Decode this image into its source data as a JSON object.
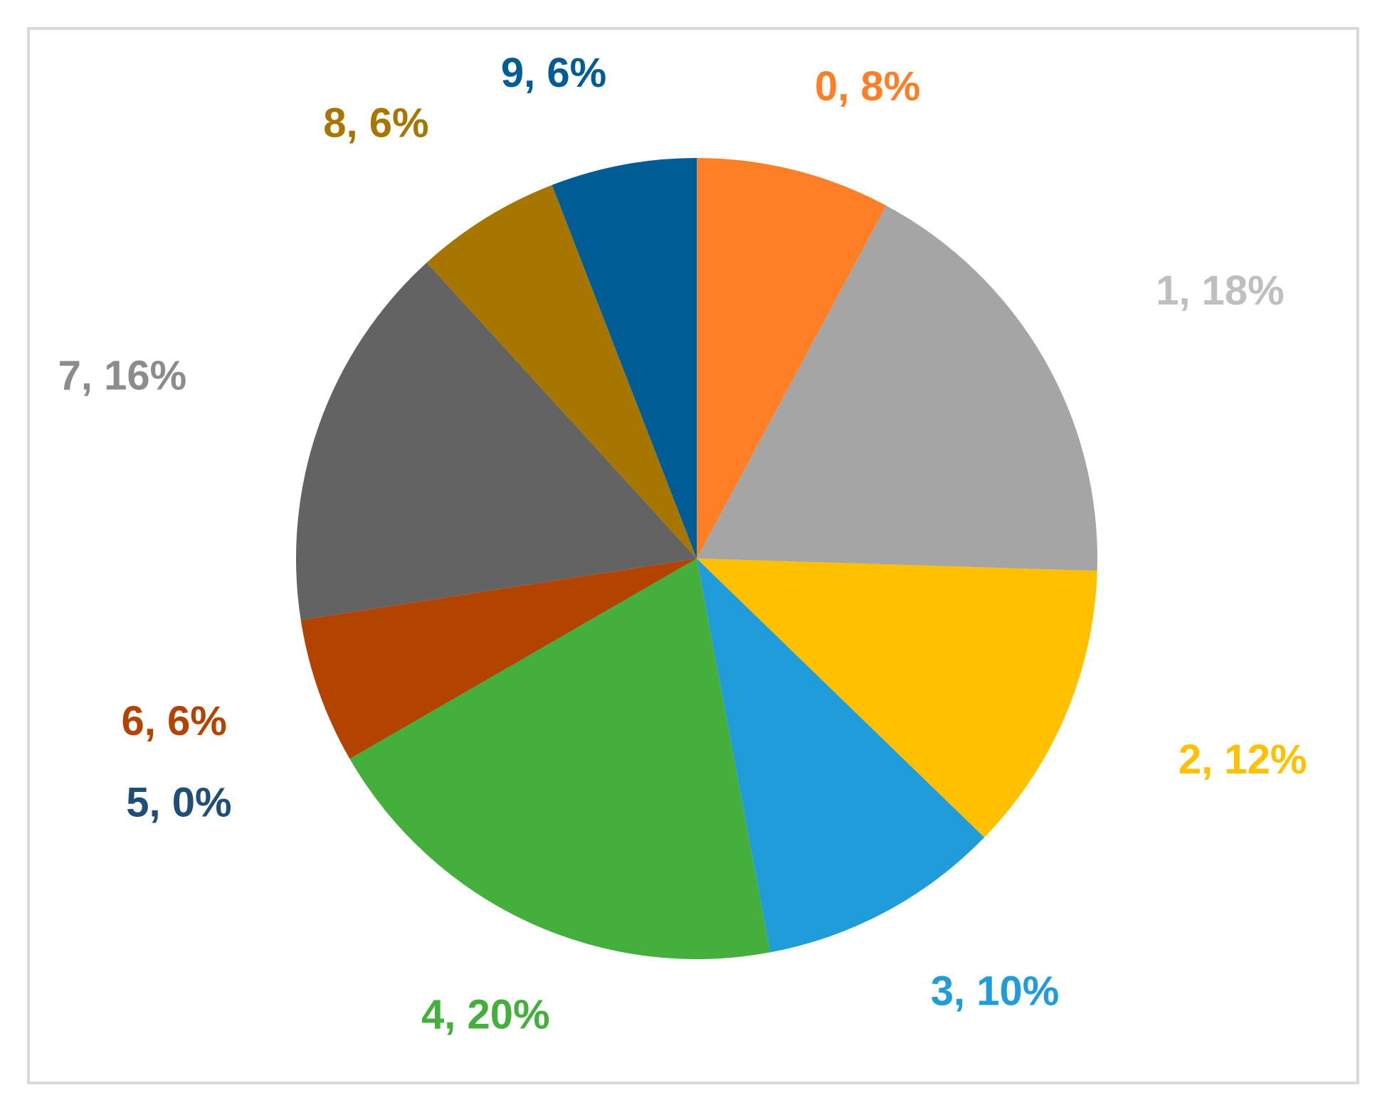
{
  "chart_data": {
    "type": "pie",
    "title": "",
    "start_angle_deg": 0,
    "direction": "clockwise",
    "slices": [
      {
        "category": "0",
        "value": 8,
        "label": "0, 8%",
        "color": "#FF7F27"
      },
      {
        "category": "1",
        "value": 18,
        "label": "1, 18%",
        "color": "#A5A5A5"
      },
      {
        "category": "2",
        "value": 12,
        "label": "2, 12%",
        "color": "#FFC000"
      },
      {
        "category": "3",
        "value": 10,
        "label": "3, 10%",
        "color": "#1F9CD9"
      },
      {
        "category": "4",
        "value": 20,
        "label": "4, 20%",
        "color": "#44AF3C"
      },
      {
        "category": "5",
        "value": 0,
        "label": "5, 0%",
        "color": "#264478"
      },
      {
        "category": "6",
        "value": 6,
        "label": "6, 6%",
        "color": "#B34400"
      },
      {
        "category": "7",
        "value": 16,
        "label": "7, 16%",
        "color": "#636363"
      },
      {
        "category": "8",
        "value": 6,
        "label": "8, 6%",
        "color": "#A67600"
      },
      {
        "category": "9",
        "value": 6,
        "label": "9, 6%",
        "color": "#005C95"
      }
    ],
    "label_colors": {
      "1": "#BFBFBF",
      "7": "#8C8C8C",
      "5": "#1F4E79",
      "6": "#B34400",
      "8": "#A67600",
      "9": "#005C95"
    },
    "legend": "none"
  }
}
